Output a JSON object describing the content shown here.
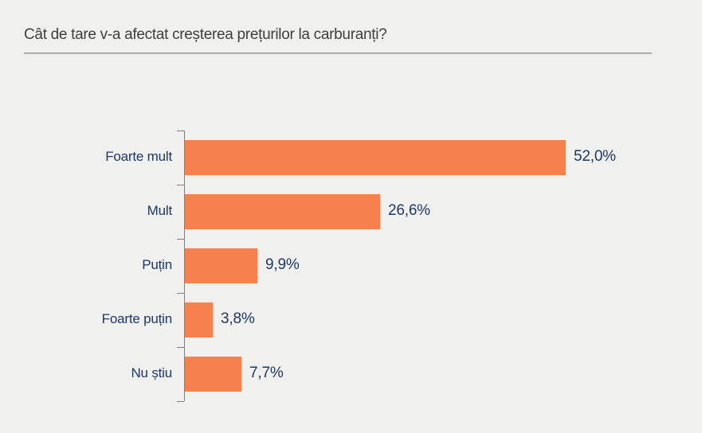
{
  "page": {
    "title": "Cât de tare v-a afectat creșterea prețurilor la carburanți?"
  },
  "chart_data": {
    "type": "bar",
    "orientation": "horizontal",
    "title": "Cât de tare v-a afectat creșterea prețurilor la carburanți?",
    "categories": [
      "Foarte mult",
      "Mult",
      "Puțin",
      "Foarte puțin",
      "Nu știu"
    ],
    "values": [
      52.0,
      26.6,
      9.9,
      3.8,
      7.7
    ],
    "value_labels": [
      "52,0%",
      "26,6%",
      "9,9%",
      "3,8%",
      "7,7%"
    ],
    "unit": "%",
    "xlim": [
      0,
      55
    ],
    "grid": false,
    "legend": false,
    "value_labels_position": "end-of-bar",
    "colors": {
      "bar": "#f6804e",
      "category_label": "#1f3864",
      "value_label": "#1f3864",
      "axis": "#7f7f7f",
      "title": "#3e3e3e",
      "background": "#f0f0ef",
      "separator": "#8f8f8f"
    }
  }
}
